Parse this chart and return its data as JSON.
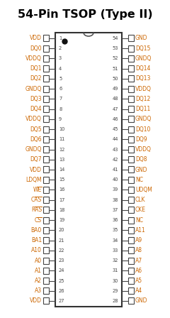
{
  "title": "54-Pin TSOP (Type II)",
  "title_color": "#000000",
  "title_fontsize": 11.5,
  "pin_label_color": "#CC6600",
  "pin_number_color": "#444444",
  "background_color": "#ffffff",
  "left_pins": [
    [
      1,
      "VDD"
    ],
    [
      2,
      "DQ0"
    ],
    [
      3,
      "VDDQ"
    ],
    [
      4,
      "DQ1"
    ],
    [
      5,
      "DQ2"
    ],
    [
      6,
      "GNDQ"
    ],
    [
      7,
      "DQ3"
    ],
    [
      8,
      "DQ4"
    ],
    [
      9,
      "VDDQ"
    ],
    [
      10,
      "DQ5"
    ],
    [
      11,
      "DQ6"
    ],
    [
      12,
      "GNDQ"
    ],
    [
      13,
      "DQ7"
    ],
    [
      14,
      "VDD"
    ],
    [
      15,
      "LDQM"
    ],
    [
      16,
      "WE"
    ],
    [
      17,
      "CAS"
    ],
    [
      18,
      "RAS"
    ],
    [
      19,
      "CS"
    ],
    [
      20,
      "BA0"
    ],
    [
      21,
      "BA1"
    ],
    [
      22,
      "A10"
    ],
    [
      23,
      "A0"
    ],
    [
      24,
      "A1"
    ],
    [
      25,
      "A2"
    ],
    [
      26,
      "A3"
    ],
    [
      27,
      "VDD"
    ]
  ],
  "right_pins": [
    [
      54,
      "GND"
    ],
    [
      53,
      "DQ15"
    ],
    [
      52,
      "GNDQ"
    ],
    [
      51,
      "DQ14"
    ],
    [
      50,
      "DQ13"
    ],
    [
      49,
      "VDDQ"
    ],
    [
      48,
      "DQ12"
    ],
    [
      47,
      "DQ11"
    ],
    [
      46,
      "GNDQ"
    ],
    [
      45,
      "DQ10"
    ],
    [
      44,
      "DQ9"
    ],
    [
      43,
      "VDDQ"
    ],
    [
      42,
      "DQ8"
    ],
    [
      41,
      "GND"
    ],
    [
      40,
      "NC"
    ],
    [
      39,
      "UDQM"
    ],
    [
      38,
      "CLK"
    ],
    [
      37,
      "CKE"
    ],
    [
      36,
      "NC"
    ],
    [
      35,
      "A11"
    ],
    [
      34,
      "A9"
    ],
    [
      33,
      "A8"
    ],
    [
      32,
      "A7"
    ],
    [
      31,
      "A6"
    ],
    [
      30,
      "A5"
    ],
    [
      29,
      "A4"
    ],
    [
      28,
      "GND"
    ]
  ],
  "overline_pins": [
    "WE",
    "CAS",
    "RAS",
    "CS"
  ]
}
